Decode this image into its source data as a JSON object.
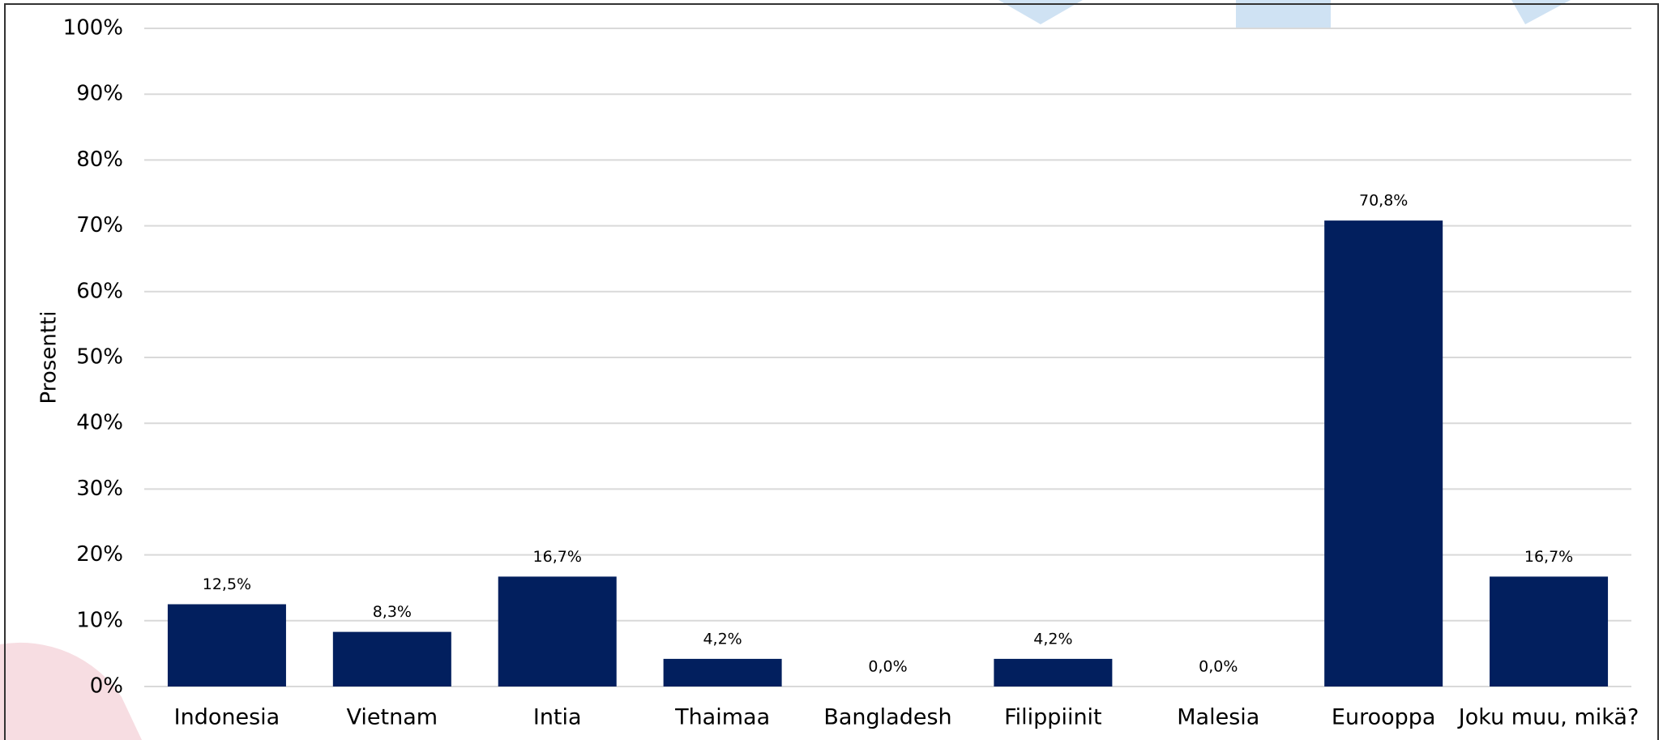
{
  "chart_data": {
    "type": "bar",
    "y_label": "Prosentti",
    "categories": [
      "Indonesia",
      "Vietnam",
      "Intia",
      "Thaimaa",
      "Bangladesh",
      "Filippiinit",
      "Malesia",
      "Eurooppa",
      "Joku muu, mikä?"
    ],
    "values": [
      12.5,
      8.3,
      16.7,
      4.2,
      0,
      4.2,
      0,
      70.8,
      16.7
    ],
    "value_labels": [
      "12,5%",
      "8,3%",
      "16,7%",
      "4,2%",
      "0,0%",
      "4,2%",
      "0,0%",
      "70,8%",
      "16,7%"
    ],
    "color": "#021f5e",
    "ylim": [
      0,
      100
    ],
    "yticks": [
      {
        "value": 0,
        "label": "0%"
      },
      {
        "value": 10,
        "label": "10%"
      },
      {
        "value": 20,
        "label": "20%"
      },
      {
        "value": 30,
        "label": "30%"
      },
      {
        "value": 40,
        "label": "40%"
      },
      {
        "value": 50,
        "label": "50%"
      },
      {
        "value": 60,
        "label": "60%"
      },
      {
        "value": 70,
        "label": "70%"
      },
      {
        "value": 80,
        "label": "80%"
      },
      {
        "value": 90,
        "label": "90%"
      },
      {
        "value": 100,
        "label": "100%"
      }
    ],
    "grid": true
  }
}
